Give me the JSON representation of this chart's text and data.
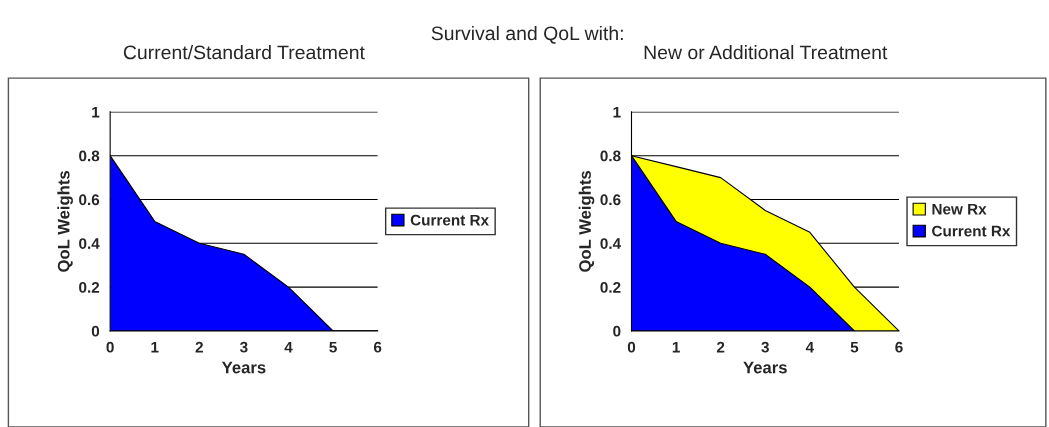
{
  "chart_data": [
    {
      "type": "area",
      "title": "Current/Standard Treatment",
      "annotations": [
        "Survival and QoL with:"
      ],
      "xlabel": "Years",
      "ylabel": "QoL Weights",
      "x": [
        0,
        1,
        2,
        3,
        4,
        5
      ],
      "series": [
        {
          "name": "Current Rx",
          "color": "#0000ff",
          "values": [
            0.8,
            0.5,
            0.4,
            0.35,
            0.2,
            0
          ]
        }
      ],
      "xlim": [
        0,
        6
      ],
      "xticks": [
        0,
        1,
        2,
        3,
        4,
        5,
        6
      ],
      "ylim": [
        0,
        1
      ],
      "yticks": [
        0,
        0.2,
        0.4,
        0.6,
        0.8,
        1
      ],
      "grid": "y",
      "legend": "right"
    },
    {
      "type": "area",
      "title": "New or Additional Treatment",
      "xlabel": "Years",
      "ylabel": "QoL Weights",
      "x": [
        0,
        1,
        2,
        3,
        4,
        5,
        6
      ],
      "series": [
        {
          "name": "New Rx",
          "color": "#ffff00",
          "values": [
            0.8,
            0.75,
            0.7,
            0.55,
            0.45,
            0.2,
            0
          ]
        },
        {
          "name": "Current Rx",
          "color": "#0000ff",
          "values": [
            0.8,
            0.5,
            0.4,
            0.35,
            0.2,
            0,
            null
          ]
        }
      ],
      "xlim": [
        0,
        6
      ],
      "xticks": [
        0,
        1,
        2,
        3,
        4,
        5,
        6
      ],
      "ylim": [
        0,
        1
      ],
      "yticks": [
        0,
        0.2,
        0.4,
        0.6,
        0.8,
        1
      ],
      "grid": "y",
      "legend": "right"
    }
  ]
}
